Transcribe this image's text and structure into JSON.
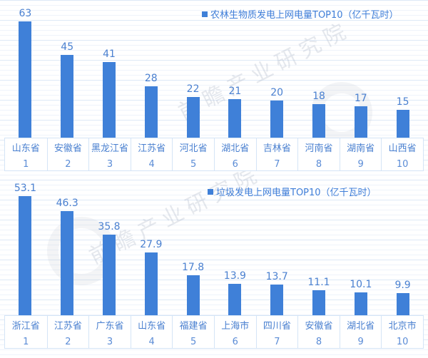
{
  "watermark": {
    "text": "前瞻产业研究院"
  },
  "chart_data": [
    {
      "type": "bar",
      "title": "农林生物质发电上网电量TOP10（亿千瓦时）",
      "categories": [
        "山东省",
        "安徽省",
        "黑龙江省",
        "江苏省",
        "河北省",
        "湖北省",
        "吉林省",
        "河南省",
        "湖南省",
        "山西省"
      ],
      "ranks": [
        "1",
        "2",
        "3",
        "4",
        "5",
        "6",
        "7",
        "8",
        "9",
        "10"
      ],
      "values": [
        63,
        45,
        41,
        28,
        22,
        21,
        20,
        18,
        17,
        15
      ],
      "xlabel": "",
      "ylabel": "",
      "ylim": [
        0,
        63
      ],
      "bar_color": "#3f80d8",
      "label_color": "#4a80d0",
      "grid": true,
      "value_labels": true,
      "legend_position": "top-center"
    },
    {
      "type": "bar",
      "title": "垃圾发电上网电量TOP10（亿千瓦时）",
      "categories": [
        "浙江省",
        "江苏省",
        "广东省",
        "山东省",
        "福建省",
        "上海市",
        "四川省",
        "安徽省",
        "湖北省",
        "北京市"
      ],
      "ranks": [
        "1",
        "2",
        "3",
        "4",
        "5",
        "6",
        "7",
        "8",
        "9",
        "10"
      ],
      "values": [
        53.1,
        46.3,
        35.8,
        27.9,
        17.8,
        13.9,
        13.7,
        11.1,
        10.1,
        9.9
      ],
      "xlabel": "",
      "ylabel": "",
      "ylim": [
        0,
        53.1
      ],
      "bar_color": "#3f80d8",
      "label_color": "#4a80d0",
      "grid": true,
      "value_labels": true,
      "legend_position": "top-center"
    }
  ]
}
